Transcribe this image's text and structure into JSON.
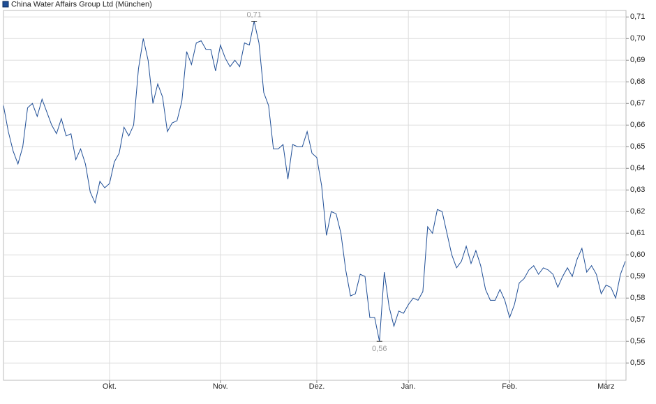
{
  "chart_data": {
    "type": "line",
    "categories": [
      null,
      null,
      null,
      null,
      null,
      null,
      null,
      null,
      null,
      null,
      null,
      null,
      null,
      null,
      null,
      null,
      null,
      null,
      null,
      null,
      null,
      null,
      "Okt.",
      null,
      null,
      null,
      null,
      null,
      null,
      null,
      null,
      null,
      null,
      null,
      null,
      null,
      null,
      null,
      null,
      null,
      null,
      null,
      null,
      null,
      null,
      "Nov.",
      null,
      null,
      null,
      null,
      null,
      null,
      null,
      null,
      null,
      null,
      null,
      null,
      null,
      null,
      null,
      null,
      null,
      null,
      null,
      "Dez.",
      null,
      null,
      null,
      null,
      null,
      null,
      null,
      null,
      null,
      null,
      null,
      null,
      null,
      null,
      null,
      null,
      null,
      null,
      "Jan.",
      null,
      null,
      null,
      null,
      null,
      null,
      null,
      null,
      null,
      null,
      null,
      null,
      null,
      null,
      null,
      null,
      null,
      null,
      null,
      null,
      "Feb.",
      null,
      null,
      null,
      null,
      null,
      null,
      null,
      null,
      null,
      null,
      null,
      null,
      null,
      null,
      null,
      null,
      null,
      null,
      null,
      "März",
      null,
      null,
      null,
      null
    ],
    "series": [
      {
        "name": "China Water Affairs Group Ltd (München)",
        "color": "#1f4e96",
        "values": [
          0.669,
          0.657,
          0.648,
          0.642,
          0.65,
          0.668,
          0.67,
          0.664,
          0.672,
          0.666,
          0.66,
          0.656,
          0.663,
          0.655,
          0.656,
          0.644,
          0.649,
          0.642,
          0.629,
          0.624,
          0.634,
          0.631,
          0.633,
          0.643,
          0.647,
          0.659,
          0.655,
          0.66,
          0.686,
          0.7,
          0.69,
          0.67,
          0.679,
          0.673,
          0.657,
          0.661,
          0.662,
          0.671,
          0.694,
          0.688,
          0.698,
          0.699,
          0.695,
          0.695,
          0.685,
          0.697,
          0.691,
          0.687,
          0.69,
          0.687,
          0.698,
          0.697,
          0.708,
          0.698,
          0.675,
          0.669,
          0.649,
          0.649,
          0.651,
          0.635,
          0.651,
          0.65,
          0.65,
          0.657,
          0.647,
          0.645,
          0.632,
          0.609,
          0.62,
          0.619,
          0.61,
          0.593,
          0.581,
          0.582,
          0.591,
          0.59,
          0.571,
          0.571,
          0.56,
          0.592,
          0.576,
          0.567,
          0.574,
          0.573,
          0.577,
          0.58,
          0.579,
          0.583,
          0.613,
          0.61,
          0.621,
          0.62,
          0.61,
          0.6,
          0.594,
          0.597,
          0.604,
          0.596,
          0.602,
          0.595,
          0.584,
          0.579,
          0.579,
          0.584,
          0.579,
          0.571,
          0.577,
          0.587,
          0.589,
          0.593,
          0.595,
          0.591,
          0.594,
          0.593,
          0.591,
          0.585,
          0.59,
          0.594,
          0.59,
          0.598,
          0.603,
          0.592,
          0.595,
          0.591,
          0.582,
          0.586,
          0.585,
          0.58,
          0.591,
          0.597
        ],
        "value_labels": [
          null,
          null,
          null,
          null,
          null,
          null,
          null,
          null,
          null,
          null,
          null,
          null,
          null,
          null,
          null,
          null,
          null,
          null,
          null,
          null,
          null,
          null,
          null,
          null,
          null,
          null,
          null,
          null,
          null,
          null,
          null,
          null,
          null,
          null,
          null,
          null,
          null,
          null,
          null,
          null,
          null,
          null,
          null,
          null,
          null,
          null,
          null,
          null,
          null,
          null,
          null,
          null,
          "0,71",
          null,
          null,
          null,
          null,
          null,
          null,
          null,
          null,
          null,
          null,
          null,
          null,
          null,
          null,
          null,
          null,
          null,
          null,
          null,
          null,
          null,
          null,
          null,
          null,
          null,
          "0,56",
          null,
          null,
          null,
          null,
          null,
          null,
          null,
          null,
          null,
          null,
          null,
          null,
          null,
          null,
          null,
          null,
          null,
          null,
          null,
          null,
          null,
          null,
          null,
          null,
          null,
          null,
          null,
          null,
          null,
          null,
          null,
          null,
          null,
          null,
          null,
          null,
          null,
          null,
          null,
          null,
          null,
          null,
          null,
          null,
          null,
          null,
          null,
          null,
          null,
          null,
          null
        ]
      }
    ],
    "ylim": [
      0.542,
      0.713
    ],
    "yticks": [
      {
        "value": 0.55,
        "label": "0,55"
      },
      {
        "value": 0.56,
        "label": "0,56"
      },
      {
        "value": 0.57,
        "label": "0,57"
      },
      {
        "value": 0.58,
        "label": "0,58"
      },
      {
        "value": 0.59,
        "label": "0,59"
      },
      {
        "value": 0.6,
        "label": "0,60"
      },
      {
        "value": 0.61,
        "label": "0,61"
      },
      {
        "value": 0.62,
        "label": "0,62"
      },
      {
        "value": 0.63,
        "label": "0,63"
      },
      {
        "value": 0.64,
        "label": "0,64"
      },
      {
        "value": 0.65,
        "label": "0,65"
      },
      {
        "value": 0.66,
        "label": "0,66"
      },
      {
        "value": 0.67,
        "label": "0,67"
      },
      {
        "value": 0.68,
        "label": "0,68"
      },
      {
        "value": 0.69,
        "label": "0,69"
      },
      {
        "value": 0.7,
        "label": "0,70"
      },
      {
        "value": 0.71,
        "label": "0,71"
      }
    ],
    "grid": true
  }
}
